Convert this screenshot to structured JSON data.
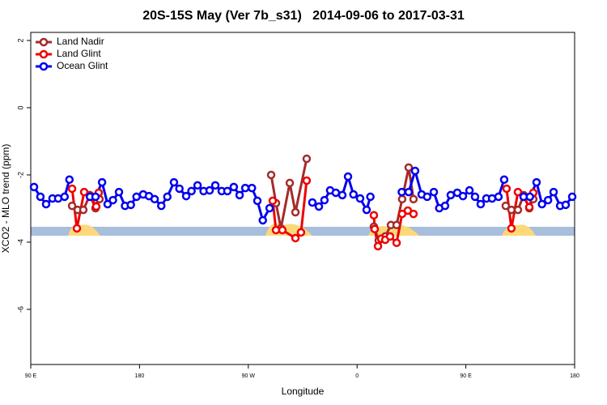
{
  "chart_data": {
    "type": "line",
    "title": "20S-15S May (Ver 7b_s31)   2014-09-06 to 2017-03-31",
    "x_label": "Longitude",
    "y_label": "XCO2 - MLO trend (ppm)",
    "xlim": [
      90,
      540
    ],
    "ylim": [
      -7.64,
      2.24
    ],
    "xticks": [
      {
        "value": 90,
        "label": "90 E"
      },
      {
        "value": 180,
        "label": "180"
      },
      {
        "value": 270,
        "label": "90 W"
      },
      {
        "value": 360,
        "label": "0"
      },
      {
        "value": 450,
        "label": "90 E"
      },
      {
        "value": 540,
        "label": "180"
      }
    ],
    "yticks": [
      2,
      0,
      -2,
      -4,
      -6
    ],
    "legend": "top-left",
    "series": [
      {
        "name": "Land Nadir",
        "color": "#a52a2a",
        "x": [
          124.2,
          128.8,
          133.5,
          138.9,
          143.6,
          146.9,
          150,
          288.9,
          292.9,
          297,
          304.3,
          309,
          318.3,
          330,
          373.9,
          377.9,
          383.3,
          388,
          392.7,
          397.3,
          402.7,
          406.7,
          420,
          483,
          487.7,
          493.1,
          497.8,
          502.5,
          505.8
        ],
        "values": [
          -2.92,
          -3.04,
          -3.04,
          -2.6,
          -2.99,
          -2.72,
          null,
          -2.0,
          -2.84,
          -3.59,
          -2.24,
          -3.11,
          -1.52,
          null,
          -3.54,
          -3.95,
          -3.83,
          -3.49,
          -3.49,
          -2.72,
          -1.78,
          -2.72,
          null,
          -2.92,
          -3.04,
          -3.04,
          -2.6,
          -2.99,
          -2.72
        ]
      },
      {
        "name": "Land Glint",
        "color": "#ee0000",
        "x": [
          124.2,
          128.2,
          134.2,
          139.6,
          144.2,
          146.2,
          150,
          290.2,
          292.9,
          298.2,
          309,
          313.6,
          318.3,
          330,
          373.9,
          374.6,
          377.3,
          379.9,
          383.3,
          387.3,
          392.7,
          397.3,
          402,
          406.7,
          420,
          483.7,
          487.7,
          493.1,
          497.8,
          502.5,
          505.8
        ],
        "values": [
          -2.41,
          -3.59,
          -2.51,
          -2.65,
          -2.94,
          -2.53,
          null,
          -2.77,
          -3.64,
          -3.64,
          -3.88,
          -3.71,
          -2.17,
          null,
          -3.2,
          -3.61,
          -4.12,
          -3.9,
          -3.93,
          -3.83,
          -4.02,
          -3.16,
          -3.06,
          -3.16,
          null,
          -2.41,
          -3.59,
          -2.51,
          -2.65,
          -2.96,
          -2.53
        ]
      },
      {
        "name": "Ocean Glint",
        "color": "#0000ee",
        "x": [
          92.7,
          98,
          102.7,
          108,
          112.7,
          118,
          122,
          130,
          139,
          143.6,
          149,
          153.6,
          158,
          163,
          168,
          172.8,
          177.5,
          183,
          187.8,
          192.5,
          198,
          203,
          208.5,
          213,
          218.6,
          223,
          228,
          233,
          238,
          242.7,
          248,
          252.7,
          258,
          262.8,
          267.5,
          273,
          277.5,
          282,
          287.6,
          300,
          323,
          328.4,
          333,
          337.7,
          342.4,
          347.8,
          352.5,
          357,
          362.5,
          367.9,
          371,
          385,
          397,
          402.7,
          408,
          413.4,
          418,
          423.5,
          428,
          432.8,
          437.5,
          442.9,
          447.6,
          453,
          457.6,
          462.3,
          467,
          471.7,
          477,
          481.7,
          490,
          497.8,
          503,
          508.5,
          513,
          518,
          522.6,
          528,
          532.6,
          538
        ],
        "values": [
          -2.36,
          -2.65,
          -2.87,
          -2.7,
          -2.7,
          -2.65,
          -2.14,
          null,
          -2.65,
          -2.65,
          -2.22,
          -2.87,
          -2.75,
          -2.51,
          -2.92,
          -2.89,
          -2.65,
          -2.58,
          -2.63,
          -2.72,
          -2.92,
          -2.65,
          -2.22,
          -2.41,
          -2.63,
          -2.48,
          -2.31,
          -2.48,
          -2.46,
          -2.31,
          -2.48,
          -2.48,
          -2.36,
          -2.6,
          -2.39,
          -2.39,
          -2.77,
          -3.35,
          -2.99,
          null,
          -2.82,
          -2.94,
          -2.75,
          -2.46,
          -2.53,
          -2.6,
          -2.05,
          -2.58,
          -2.7,
          -3.04,
          -2.65,
          null,
          -2.51,
          -2.51,
          -1.88,
          -2.58,
          -2.65,
          -2.51,
          -2.99,
          -2.92,
          -2.6,
          -2.53,
          -2.63,
          -2.46,
          -2.65,
          -2.87,
          -2.7,
          -2.7,
          -2.65,
          -2.14,
          null,
          -2.65,
          -2.65,
          -2.22,
          -2.87,
          -2.75,
          -2.51,
          -2.92,
          -2.89,
          -2.65
        ]
      }
    ]
  }
}
